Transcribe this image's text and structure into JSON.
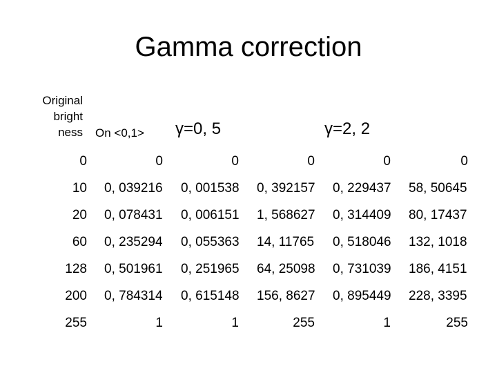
{
  "title": "Gamma correction",
  "headers": {
    "original_brightness": "Original\nbright\nness",
    "on_range": "On <0,1>",
    "gamma_1": "γ=0, 5",
    "gamma_2": "γ=2, 2"
  },
  "rows": [
    [
      "0",
      "0",
      "0",
      "0",
      "0",
      "0"
    ],
    [
      "10",
      "0, 039216",
      "0, 001538",
      "0, 392157",
      "0, 229437",
      "58, 50645"
    ],
    [
      "20",
      "0, 078431",
      "0, 006151",
      "1, 568627",
      "0, 314409",
      "80, 17437"
    ],
    [
      "60",
      "0, 235294",
      "0, 055363",
      "14, 11765",
      "0, 518046",
      "132, 1018"
    ],
    [
      "128",
      "0, 501961",
      "0, 251965",
      "64, 25098",
      "0, 731039",
      "186, 4151"
    ],
    [
      "200",
      "0, 784314",
      "0, 615148",
      "156, 8627",
      "0, 895449",
      "228, 3395"
    ],
    [
      "255",
      "1",
      "1",
      "255",
      "1",
      "255"
    ]
  ]
}
